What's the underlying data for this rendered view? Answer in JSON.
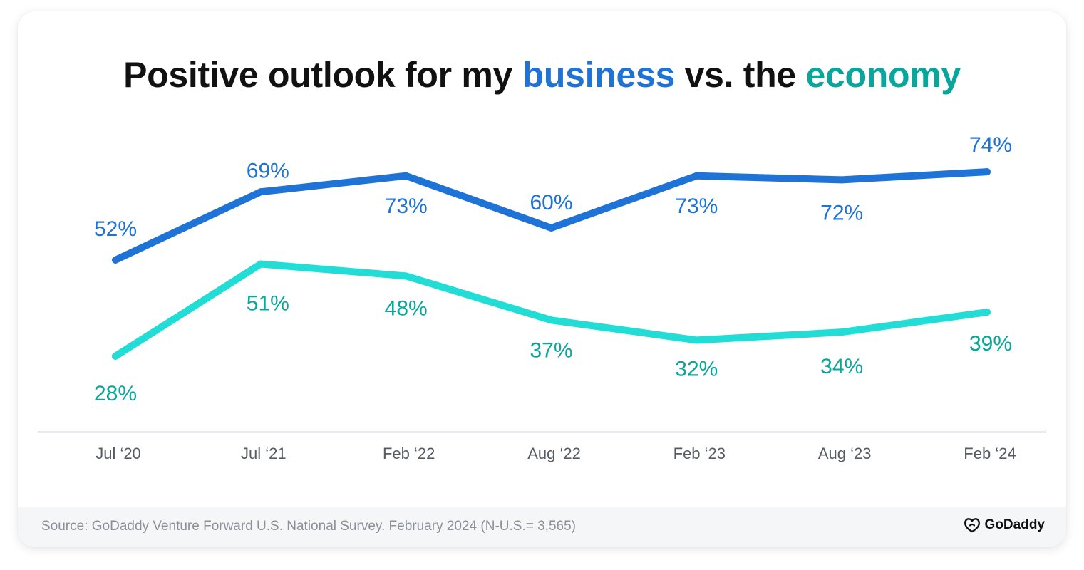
{
  "title": {
    "prefix": "Positive outlook for my ",
    "business_word": "business",
    "middle": " vs. the ",
    "economy_word": "economy"
  },
  "colors": {
    "business": "#1f73d6",
    "economy": "#22ddd6",
    "economy_label": "#0aa59b",
    "business_label": "#1f73d6",
    "axis": "#a9adb3",
    "tick_text": "#555b62"
  },
  "chart_data": {
    "type": "line",
    "categories": [
      "Jul ‘20",
      "Jul ‘21",
      "Feb ‘22",
      "Aug ‘22",
      "Feb ‘23",
      "Aug ‘23",
      "Feb ‘24"
    ],
    "series": [
      {
        "name": "business",
        "values": [
          52,
          69,
          73,
          60,
          73,
          72,
          74
        ],
        "labels": [
          "52%",
          "69%",
          "73%",
          "60%",
          "73%",
          "72%",
          "74%"
        ]
      },
      {
        "name": "economy",
        "values": [
          28,
          51,
          48,
          37,
          32,
          34,
          39
        ],
        "labels": [
          "28%",
          "51%",
          "48%",
          "37%",
          "32%",
          "34%",
          "39%"
        ]
      }
    ],
    "xlabel": "",
    "ylabel": "",
    "grid": false,
    "legend": "none"
  },
  "footer": {
    "source": "Source: GoDaddy Venture Forward U.S. National Survey. February 2024 (N-U.S.= 3,565)",
    "logo_text": "GoDaddy",
    "logo_icon": "godaddy-logo-icon"
  }
}
